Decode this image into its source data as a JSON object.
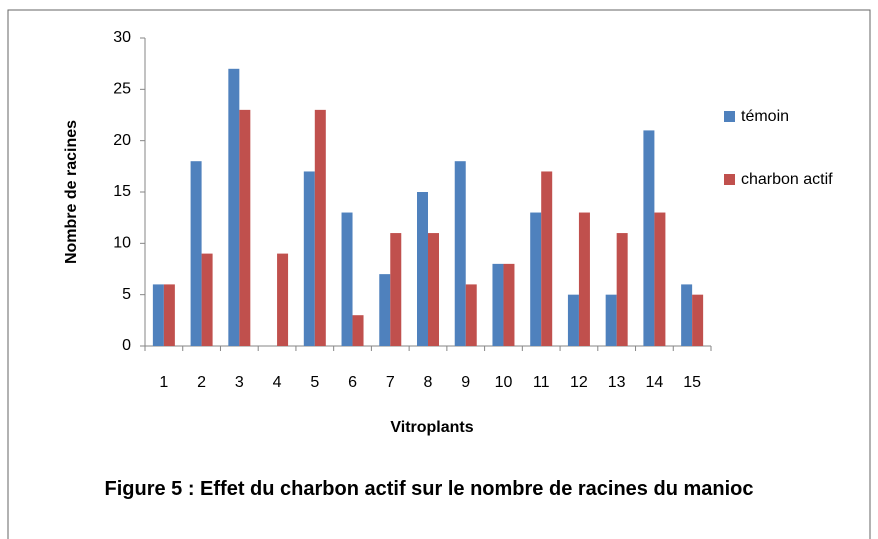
{
  "chart_data": {
    "type": "bar",
    "title": "Figure 5 : Effet du charbon actif sur le nombre de racines du manioc",
    "xlabel": "Vitroplants",
    "ylabel": "Nombre de racines",
    "categories": [
      "1",
      "2",
      "3",
      "4",
      "5",
      "6",
      "7",
      "8",
      "9",
      "10",
      "11",
      "12",
      "13",
      "14",
      "15"
    ],
    "series": [
      {
        "name": "témoin",
        "color": "#4f81bd",
        "values": [
          6,
          18,
          27,
          0,
          17,
          13,
          7,
          15,
          18,
          8,
          13,
          5,
          5,
          21,
          6
        ]
      },
      {
        "name": "charbon actif",
        "color": "#c0504d",
        "values": [
          6,
          9,
          23,
          9,
          23,
          3,
          11,
          11,
          6,
          8,
          17,
          13,
          11,
          13,
          5
        ]
      }
    ],
    "ylim": [
      0,
      30
    ],
    "yticks": [
      0,
      5,
      10,
      15,
      20,
      25,
      30
    ],
    "grid": false,
    "legend": "right"
  }
}
